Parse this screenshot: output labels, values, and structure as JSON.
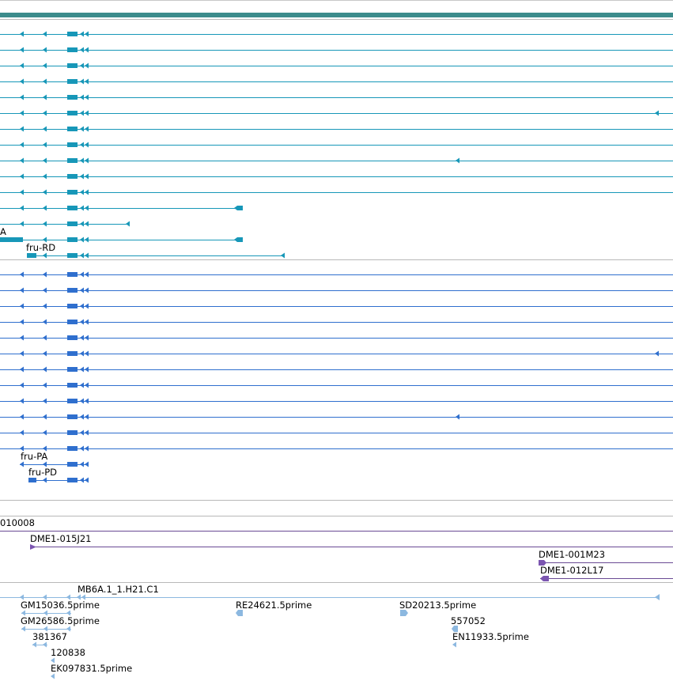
{
  "colors": {
    "background": "#ffffff",
    "divider": "#b8b8b8",
    "header_bar": "#3c8c8c",
    "transcript": "#1797b8",
    "protein": "#2f6fce",
    "clone_line": "#6a4a94",
    "clone_marker": "#7b55b0",
    "est": "#8cb8e0"
  },
  "tracks": {
    "transcripts": {
      "rows": [
        {
          "label": "",
          "extra_arrow": false,
          "tail": "full"
        },
        {
          "label": "",
          "extra_arrow": false,
          "tail": "full"
        },
        {
          "label": "",
          "extra_arrow": false,
          "tail": "full"
        },
        {
          "label": "",
          "extra_arrow": false,
          "tail": "full"
        },
        {
          "label": "",
          "extra_arrow": false,
          "tail": "full"
        },
        {
          "label": "",
          "extra_arrow": true,
          "tail": "full"
        },
        {
          "label": "",
          "extra_arrow": false,
          "tail": "full"
        },
        {
          "label": "",
          "extra_arrow": false,
          "tail": "full"
        },
        {
          "label": "",
          "extra_arrow": false,
          "tail": "full_mid_arrow"
        },
        {
          "label": "",
          "extra_arrow": false,
          "tail": "full"
        },
        {
          "label": "",
          "extra_arrow": false,
          "tail": "full"
        },
        {
          "label": "",
          "extra_arrow": false,
          "tail": "end_block_300"
        },
        {
          "label": "",
          "extra_arrow": false,
          "tail": "end_arrow_162"
        },
        {
          "label": "A",
          "extra_arrow": false,
          "tail": "end_block_300_left_block"
        },
        {
          "label": "fru-RD",
          "extra_arrow": false,
          "tail": "end_arrow_358"
        }
      ]
    },
    "proteins": {
      "rows": [
        {
          "label": ""
        },
        {
          "label": ""
        },
        {
          "label": ""
        },
        {
          "label": ""
        },
        {
          "label": ""
        },
        {
          "label": ""
        },
        {
          "label": ""
        },
        {
          "label": ""
        },
        {
          "label": ""
        },
        {
          "label": ""
        },
        {
          "label": ""
        },
        {
          "label": ""
        },
        {
          "label": "fru-PA"
        },
        {
          "label": "fru-PD"
        }
      ]
    },
    "clone_id": "010008",
    "clones": [
      "DME1-015J21",
      "DME1-001M23",
      "DME1-012L17"
    ],
    "ests": [
      "MB6A.1_1.H21.C1",
      "GM15036.5prime",
      "GM26586.5prime",
      "381367",
      "120838",
      "EK097831.5prime",
      "RE24621.5prime",
      "SD20213.5prime",
      "557052",
      "EN11933.5prime"
    ]
  }
}
